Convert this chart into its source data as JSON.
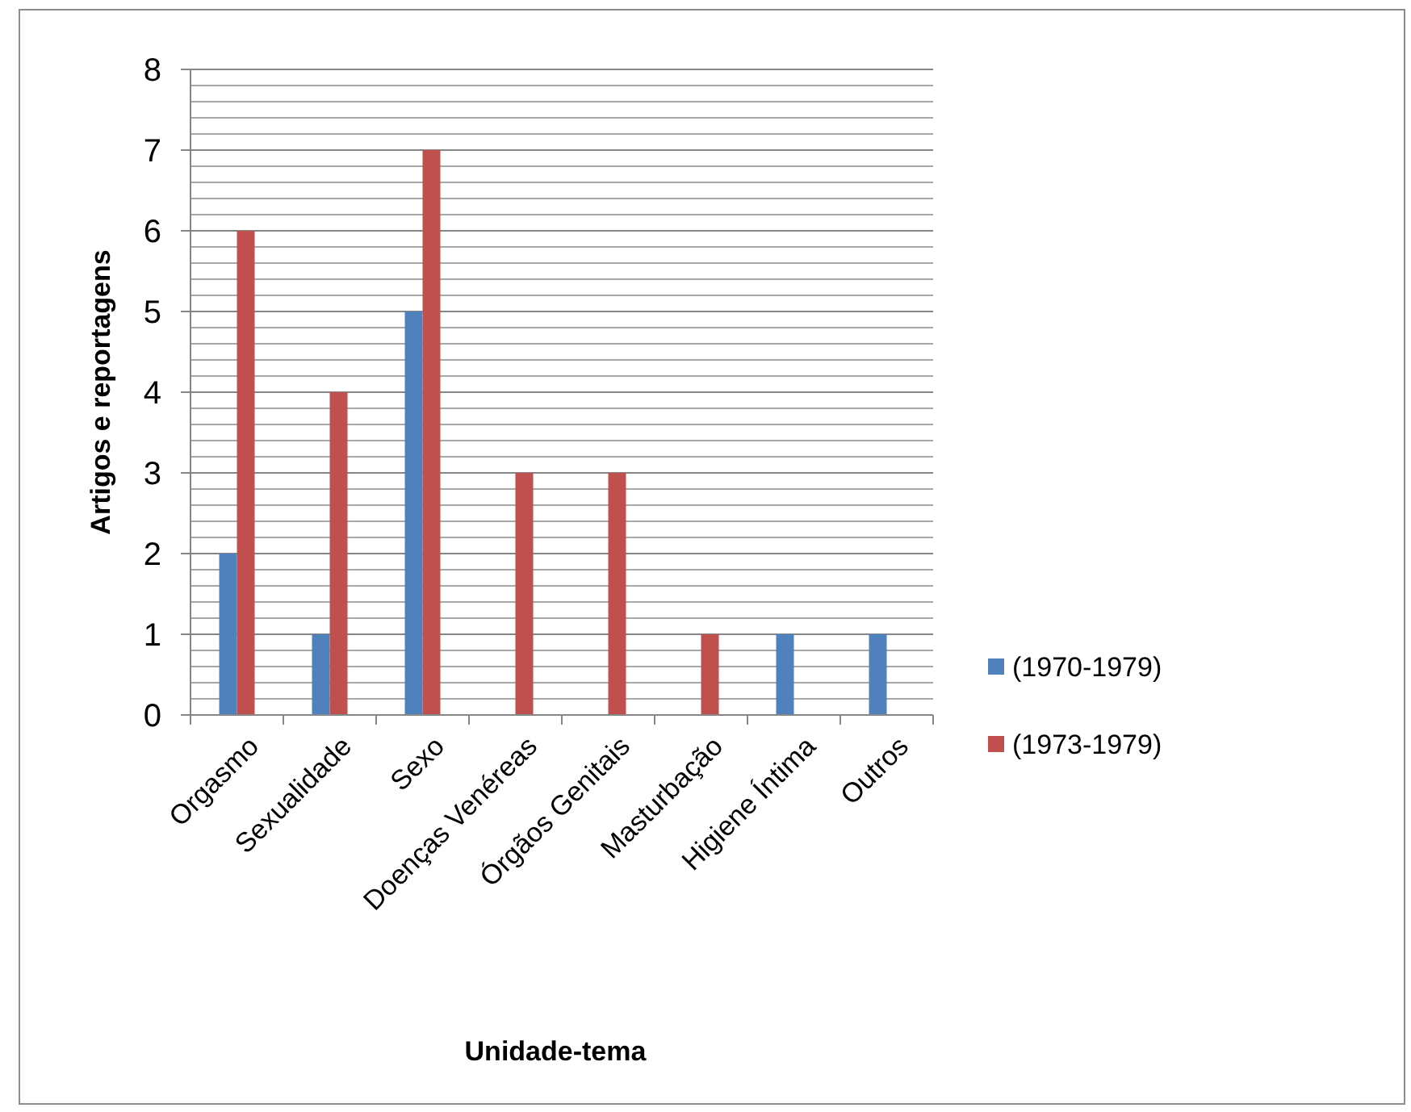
{
  "chart_data": {
    "type": "bar",
    "xlabel": "Unidade-tema",
    "ylabel": "Artigos e reportagens",
    "categories": [
      "Orgasmo",
      "Sexualidade",
      "Sexo",
      "Doenças Venéreas",
      "Órgãos Genitais",
      "Masturbação",
      "Higiene Íntima",
      "Outros"
    ],
    "series": [
      {
        "name": "(1970-1979)",
        "color": "#4f81bd",
        "values": [
          2,
          1,
          5,
          0,
          0,
          0,
          1,
          1
        ]
      },
      {
        "name": "(1973-1979)",
        "color": "#c0504d",
        "values": [
          6,
          4,
          7,
          3,
          3,
          1,
          0,
          0
        ]
      }
    ],
    "ylim": [
      0,
      8
    ],
    "yticks": [
      0,
      {
        "value": 0.2,
        "label": null
      },
      {
        "value": 0.4,
        "label": null
      },
      {
        "value": 0.6,
        "label": null
      },
      {
        "value": 0.8,
        "label": null
      },
      1,
      {
        "value": 1.2,
        "label": null
      },
      {
        "value": 1.4,
        "label": null
      },
      {
        "value": 1.6,
        "label": null
      },
      {
        "value": 1.8,
        "label": null
      },
      2,
      {
        "value": 2.2,
        "label": null
      },
      {
        "value": 2.4,
        "label": null
      },
      {
        "value": 2.6,
        "label": null
      },
      {
        "value": 2.8,
        "label": null
      },
      3,
      {
        "value": 3.2,
        "label": null
      },
      {
        "value": 3.4,
        "label": null
      },
      {
        "value": 3.6,
        "label": null
      },
      {
        "value": 3.8,
        "label": null
      },
      4,
      {
        "value": 4.2,
        "label": null
      },
      {
        "value": 4.4,
        "label": null
      },
      {
        "value": 4.6,
        "label": null
      },
      {
        "value": 4.8,
        "label": null
      },
      5,
      {
        "value": 5.2,
        "label": null
      },
      {
        "value": 5.4,
        "label": null
      },
      {
        "value": 5.6,
        "label": null
      },
      {
        "value": 5.8,
        "label": null
      },
      6,
      {
        "value": 6.2,
        "label": null
      },
      {
        "value": 6.4,
        "label": null
      },
      {
        "value": 6.6,
        "label": null
      },
      {
        "value": 6.8,
        "label": null
      },
      7,
      {
        "value": 7.2,
        "label": null
      },
      {
        "value": 7.4,
        "label": null
      },
      {
        "value": 7.6,
        "label": null
      },
      {
        "value": 7.8,
        "label": null
      },
      8
    ],
    "grid": true,
    "legend": "right"
  }
}
